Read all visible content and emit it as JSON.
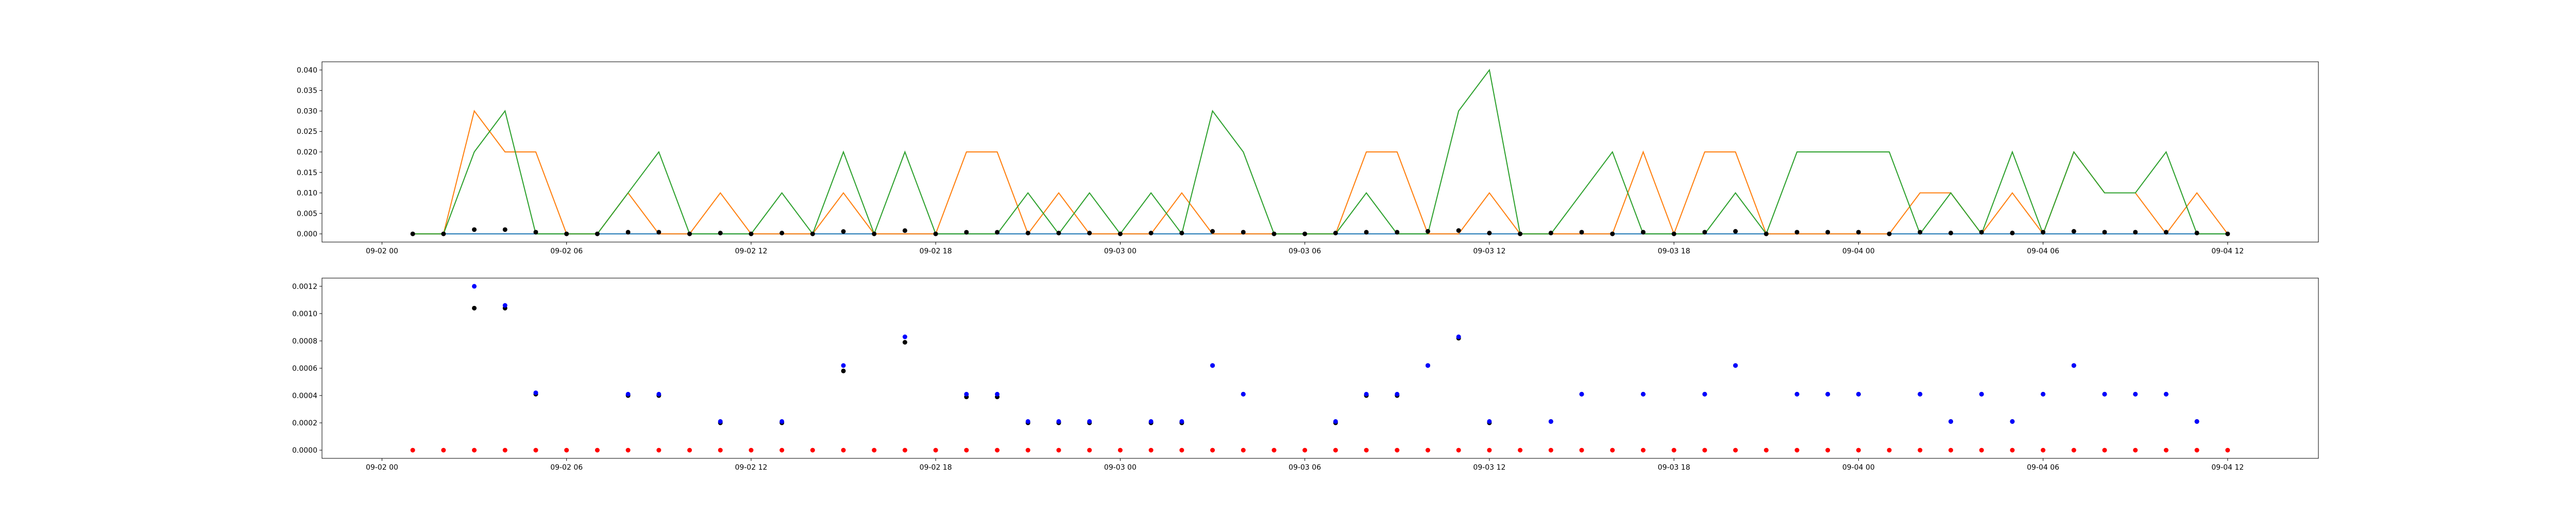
{
  "chart_data": [
    {
      "type": "line",
      "x": [
        "09-02 01",
        "09-02 02",
        "09-02 03",
        "09-02 04",
        "09-02 05",
        "09-02 06",
        "09-02 07",
        "09-02 08",
        "09-02 09",
        "09-02 10",
        "09-02 11",
        "09-02 12",
        "09-02 13",
        "09-02 14",
        "09-02 15",
        "09-02 16",
        "09-02 17",
        "09-02 18",
        "09-02 19",
        "09-02 20",
        "09-02 21",
        "09-02 22",
        "09-02 23",
        "09-03 00",
        "09-03 01",
        "09-03 02",
        "09-03 03",
        "09-03 04",
        "09-03 05",
        "09-03 06",
        "09-03 07",
        "09-03 08",
        "09-03 09",
        "09-03 10",
        "09-03 11",
        "09-03 12",
        "09-03 13",
        "09-03 14",
        "09-03 15",
        "09-03 16",
        "09-03 17",
        "09-03 18",
        "09-03 19",
        "09-03 20",
        "09-03 21",
        "09-03 22",
        "09-03 23",
        "09-04 00",
        "09-04 01",
        "09-04 02",
        "09-04 03",
        "09-04 04",
        "09-04 05",
        "09-04 06",
        "09-04 07",
        "09-04 08",
        "09-04 09",
        "09-04 10",
        "09-04 11",
        "09-04 12"
      ],
      "xlim": [
        "09-01 22:03",
        "09-04 14:57"
      ],
      "xticks": [
        "09-02 00",
        "09-02 06",
        "09-02 12",
        "09-02 18",
        "09-03 00",
        "09-03 06",
        "09-03 12",
        "09-03 18",
        "09-04 00",
        "09-04 06",
        "09-04 12"
      ],
      "ylim": [
        -0.002,
        0.042
      ],
      "yticks": [
        {
          "value": 0,
          "label": "0.000"
        },
        0.005,
        {
          "value": 0.01,
          "label": "0.010"
        },
        0.015,
        {
          "value": 0.02,
          "label": "0.020"
        },
        0.025,
        {
          "value": 0.03,
          "label": "0.030"
        },
        0.035,
        {
          "value": 0.04,
          "label": "0.040"
        }
      ],
      "series": [
        {
          "type": "line",
          "color": "#1f77b4",
          "values": [
            0,
            0,
            0,
            0,
            0,
            0,
            0,
            0,
            0,
            0,
            0,
            0,
            0,
            0,
            0,
            0,
            0,
            0,
            0,
            0,
            0,
            0,
            0,
            0,
            0,
            0,
            0,
            0,
            0,
            0,
            0,
            0,
            0,
            0,
            0,
            0,
            0,
            0,
            0,
            0,
            0,
            0,
            0,
            0,
            0,
            0,
            0,
            0,
            0,
            0,
            0,
            0,
            0,
            0,
            0,
            0,
            0,
            0,
            0,
            0
          ]
        },
        {
          "type": "line",
          "color": "#ff7f0e",
          "values": [
            0,
            0,
            0.03,
            0.02,
            0.02,
            0,
            0,
            0.01,
            0,
            0,
            0.01,
            0,
            0,
            0,
            0.01,
            0,
            0,
            0,
            0.02,
            0.02,
            0,
            0.01,
            0,
            0,
            0,
            0.01,
            0,
            0,
            0,
            0,
            0,
            0.02,
            0.02,
            0,
            0,
            0.01,
            0,
            0,
            0,
            0,
            0.02,
            0,
            0.02,
            0.02,
            0,
            0,
            0,
            0,
            0,
            0.01,
            0.01,
            0,
            0.01,
            0,
            0.02,
            0.01,
            0.01,
            0,
            0.01,
            0
          ]
        },
        {
          "type": "line",
          "color": "#2ca02c",
          "values": [
            0,
            0,
            0.02,
            0.03,
            0,
            0,
            0,
            0.01,
            0.02,
            0,
            0,
            0,
            0.01,
            0,
            0.02,
            0,
            0.02,
            0,
            0,
            0,
            0.01,
            0,
            0.01,
            0,
            0.01,
            0,
            0.03,
            0.02,
            0,
            0,
            0,
            0.01,
            0,
            0,
            0.03,
            0.04,
            0,
            0,
            0.01,
            0.02,
            0,
            0,
            0,
            0.01,
            0,
            0.02,
            0.02,
            0.02,
            0.02,
            0,
            0.01,
            0,
            0.02,
            0,
            0.02,
            0.01,
            0.01,
            0.02,
            0,
            0
          ]
        },
        {
          "type": "scatter",
          "color": "black",
          "values": [
            0,
            0,
            0.00104,
            0.00104,
            0.00041,
            0,
            0,
            0.0004,
            0.0004,
            0,
            0.0002,
            0,
            0.0002,
            0,
            0.00058,
            0,
            0.00079,
            0,
            0.00039,
            0.00039,
            0.0002,
            0.0002,
            0.0002,
            0,
            0.0002,
            0.0002,
            0.00062,
            0.00041,
            0,
            0,
            0.0002,
            0.0004,
            0.0004,
            0.00062,
            0.00082,
            0.0002,
            0,
            0.00021,
            0.00041,
            0,
            0.00041,
            0,
            0.00041,
            0.00062,
            0,
            0.00041,
            0.00041,
            0.00041,
            0,
            0.00041,
            0.00021,
            0.00041,
            0.00021,
            0.00041,
            0.00062,
            0.00041,
            0.00041,
            0.00041,
            0.00021,
            0
          ]
        }
      ]
    },
    {
      "type": "scatter",
      "x": [
        "09-02 01",
        "09-02 02",
        "09-02 03",
        "09-02 04",
        "09-02 05",
        "09-02 06",
        "09-02 07",
        "09-02 08",
        "09-02 09",
        "09-02 10",
        "09-02 11",
        "09-02 12",
        "09-02 13",
        "09-02 14",
        "09-02 15",
        "09-02 16",
        "09-02 17",
        "09-02 18",
        "09-02 19",
        "09-02 20",
        "09-02 21",
        "09-02 22",
        "09-02 23",
        "09-03 00",
        "09-03 01",
        "09-03 02",
        "09-03 03",
        "09-03 04",
        "09-03 05",
        "09-03 06",
        "09-03 07",
        "09-03 08",
        "09-03 09",
        "09-03 10",
        "09-03 11",
        "09-03 12",
        "09-03 13",
        "09-03 14",
        "09-03 15",
        "09-03 16",
        "09-03 17",
        "09-03 18",
        "09-03 19",
        "09-03 20",
        "09-03 21",
        "09-03 22",
        "09-03 23",
        "09-04 00",
        "09-04 01",
        "09-04 02",
        "09-04 03",
        "09-04 04",
        "09-04 05",
        "09-04 06",
        "09-04 07",
        "09-04 08",
        "09-04 09",
        "09-04 10",
        "09-04 11",
        "09-04 12"
      ],
      "xlim": [
        "09-01 22:03",
        "09-04 14:57"
      ],
      "xticks": [
        "09-02 00",
        "09-02 06",
        "09-02 12",
        "09-02 18",
        "09-03 00",
        "09-03 06",
        "09-03 12",
        "09-03 18",
        "09-04 00",
        "09-04 06",
        "09-04 12"
      ],
      "ylim": [
        -6e-05,
        0.00126
      ],
      "yticks": [
        {
          "value": 0,
          "label": "0.0000"
        },
        0.0002,
        0.0004,
        0.0006,
        0.0008,
        {
          "value": 0.001,
          "label": "0.0010"
        },
        0.0012
      ],
      "series": [
        {
          "type": "scatter",
          "color": "black",
          "values": [
            null,
            null,
            0.00104,
            0.00104,
            0.00041,
            null,
            null,
            0.0004,
            0.0004,
            null,
            0.0002,
            null,
            0.0002,
            null,
            0.00058,
            null,
            0.00079,
            null,
            0.00039,
            0.00039,
            0.0002,
            0.0002,
            0.0002,
            null,
            0.0002,
            0.0002,
            0.00062,
            0.00041,
            null,
            null,
            0.0002,
            0.0004,
            0.0004,
            0.00062,
            0.00082,
            0.0002,
            null,
            0.00021,
            0.00041,
            null,
            0.00041,
            null,
            0.00041,
            0.00062,
            null,
            0.00041,
            0.00041,
            0.00041,
            null,
            0.00041,
            0.00021,
            0.00041,
            0.00021,
            0.00041,
            0.00062,
            0.00041,
            0.00041,
            0.00041,
            0.00021,
            null
          ]
        },
        {
          "type": "scatter",
          "color": "blue",
          "values": [
            null,
            null,
            0.0012,
            0.00106,
            0.00042,
            null,
            null,
            0.00041,
            0.00041,
            null,
            0.00021,
            null,
            0.00021,
            null,
            0.00062,
            null,
            0.00083,
            null,
            0.00041,
            0.00041,
            0.00021,
            0.00021,
            0.00021,
            null,
            0.00021,
            0.00021,
            0.00062,
            0.00041,
            null,
            null,
            0.00021,
            0.00041,
            0.00041,
            0.00062,
            0.00083,
            0.00021,
            null,
            0.00021,
            0.00041,
            null,
            0.00041,
            null,
            0.00041,
            0.00062,
            null,
            0.00041,
            0.00041,
            0.00041,
            null,
            0.00041,
            0.00021,
            0.00041,
            0.00021,
            0.00041,
            0.00062,
            0.00041,
            0.00041,
            0.00041,
            0.00021,
            null
          ]
        },
        {
          "type": "scatter",
          "color": "red",
          "values": [
            0,
            0,
            0,
            0,
            0,
            0,
            0,
            0,
            0,
            0,
            0,
            0,
            0,
            0,
            0,
            0,
            0,
            0,
            0,
            0,
            0,
            0,
            0,
            0,
            0,
            0,
            0,
            0,
            0,
            0,
            0,
            0,
            0,
            0,
            0,
            0,
            0,
            0,
            0,
            0,
            0,
            0,
            0,
            0,
            0,
            0,
            0,
            0,
            0,
            0,
            0,
            0,
            0,
            0,
            0,
            0,
            0,
            0,
            0,
            0
          ]
        }
      ]
    }
  ]
}
